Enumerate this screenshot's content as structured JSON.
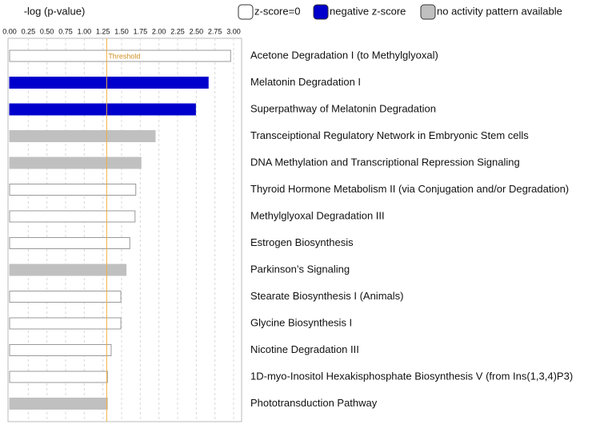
{
  "chart_data": {
    "type": "hbar",
    "title": "-log (p-value)",
    "categories": [
      "Acetone Degradation I (to Methylglyoxal)",
      "Melatonin Degradation I",
      "Superpathway of Melatonin Degradation",
      "Transceiptional Regulatory Network in Embryonic Stem cells",
      "DNA Methylation and Transcriptional Repression Signaling",
      "Thyroid Hormone Metabolism II (via Conjugation and/or Degradation)",
      "Methylglyoxal Degradation III",
      "Estrogen Biosynthesis",
      "Parkinson’s Signaling",
      "Stearate Biosynthesis I (Animals)",
      "Glycine Biosynthesis I",
      "Nicotine Degradation III",
      "1D-myo-Inositol Hexakisphosphate Biosynthesis V (from Ins(1,3,4)P3)",
      "Phototransduction Pathway"
    ],
    "series": [
      {
        "name": "z-score=0",
        "color": "#ffffff",
        "values": [
          2.96,
          null,
          null,
          null,
          null,
          1.69,
          1.68,
          1.61,
          null,
          1.49,
          1.49,
          1.36,
          1.31,
          null
        ]
      },
      {
        "name": "negative z-score",
        "color": "#0000cc",
        "values": [
          null,
          2.66,
          2.49,
          null,
          null,
          null,
          null,
          null,
          null,
          null,
          null,
          null,
          null,
          null
        ]
      },
      {
        "name": "no activity pattern available",
        "color": "#c0c0c0",
        "values": [
          null,
          null,
          null,
          1.95,
          1.76,
          null,
          null,
          null,
          1.56,
          null,
          null,
          null,
          null,
          1.31
        ]
      }
    ],
    "xlim": [
      0,
      3
    ],
    "xticks": [
      {
        "value": 0,
        "label": "0.00"
      },
      {
        "value": 0.25,
        "label": "0.25"
      },
      {
        "value": 0.5,
        "label": "0.50"
      },
      {
        "value": 0.75,
        "label": "0.75"
      },
      {
        "value": 1,
        "label": "1.00"
      },
      {
        "value": 1.25,
        "label": "1.25"
      },
      {
        "value": 1.5,
        "label": "1.50"
      },
      {
        "value": 1.75,
        "label": "1.75"
      },
      {
        "value": 2,
        "label": "2.00"
      },
      {
        "value": 2.25,
        "label": "2.25"
      },
      {
        "value": 2.5,
        "label": "2.50"
      },
      {
        "value": 2.75,
        "label": "2.75"
      },
      {
        "value": 3,
        "label": "3.00"
      }
    ],
    "grid": true,
    "threshold": {
      "value": 1.3,
      "label": "Threshold"
    }
  }
}
